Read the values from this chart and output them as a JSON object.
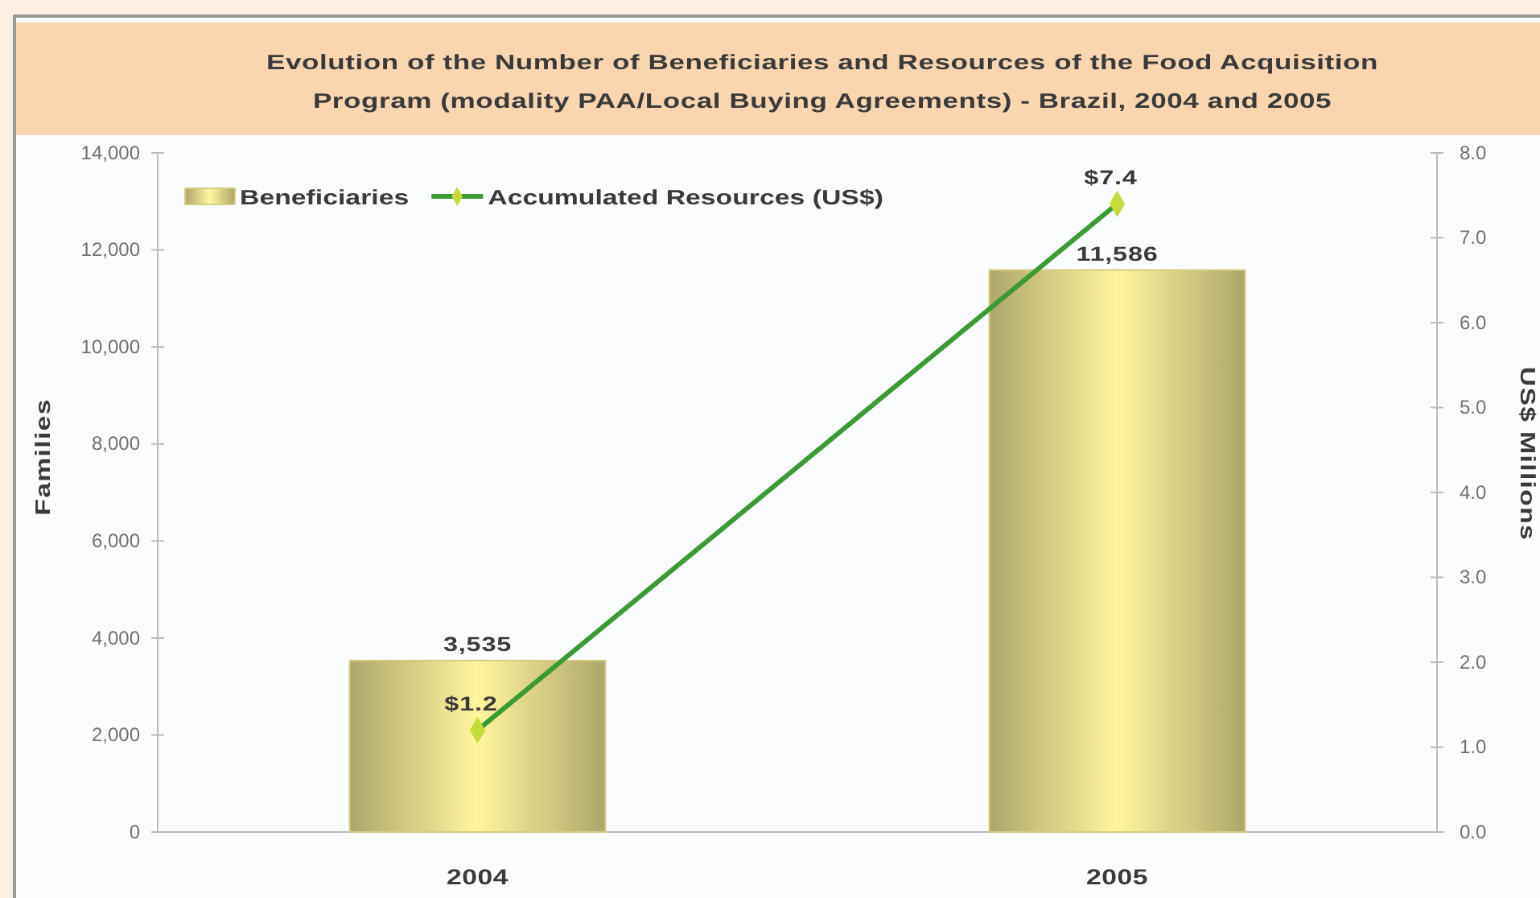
{
  "chart_data": {
    "type": "bar",
    "title": "Evolution of the Number of Beneficiaries and Resources  of the Food Acquisition Program (modality PAA/Local Buying Agreements) - Brazil, 2004 and 2005",
    "categories": [
      "2004",
      "2005"
    ],
    "ylabel": "Families",
    "y2label": "US$ Millions",
    "ylim": [
      0,
      14000
    ],
    "yticks": [
      0,
      {
        "value": 2000,
        "label": "2,000"
      },
      {
        "value": 4000,
        "label": "4,000"
      },
      {
        "value": 6000,
        "label": "6,000"
      },
      {
        "value": 8000,
        "label": "8,000"
      },
      {
        "value": 10000,
        "label": "10,000"
      },
      {
        "value": 12000,
        "label": "12,000"
      },
      {
        "value": 14000,
        "label": "14,000"
      }
    ],
    "y2lim": [
      0,
      8
    ],
    "y2ticks": [
      {
        "value": 0,
        "label": "0.0"
      },
      {
        "value": 1,
        "label": "1.0"
      },
      {
        "value": 2,
        "label": "2.0"
      },
      {
        "value": 3,
        "label": "3.0"
      },
      {
        "value": 4,
        "label": "4.0"
      },
      {
        "value": 5,
        "label": "5.0"
      },
      {
        "value": 6,
        "label": "6.0"
      },
      {
        "value": 7,
        "label": "7.0"
      },
      {
        "value": 8,
        "label": "8.0"
      }
    ],
    "series": [
      {
        "name": "Beneficiaries",
        "color": "#d6cd84",
        "values": [
          3535,
          11586
        ],
        "value_labels": [
          "3,535",
          "11,586"
        ]
      },
      {
        "name": "Accumulated Resources (US$)",
        "type": "line",
        "axis": "y2",
        "color": "#3c9a34",
        "values": [
          1.2,
          7.4
        ],
        "value_labels": [
          "$1.2",
          "$7.4"
        ]
      }
    ],
    "marker": "diamond",
    "line_style": "solid",
    "legend": "top left"
  }
}
